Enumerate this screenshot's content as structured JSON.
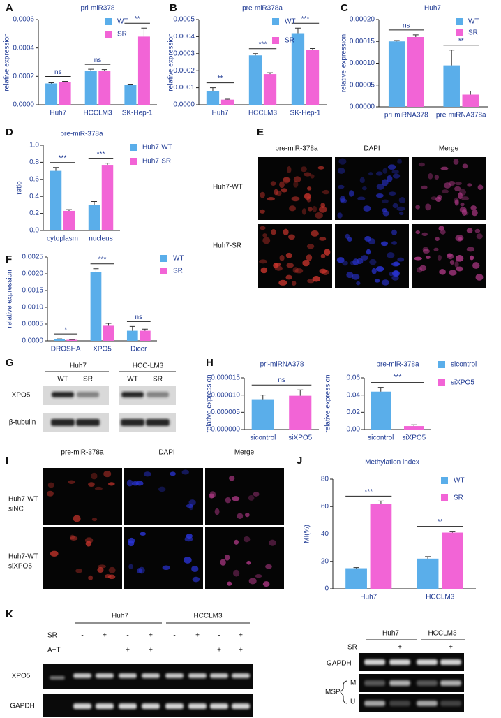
{
  "chart_data": [
    {
      "type": "bar",
      "title": "pri-miR378",
      "ylabel": "relative expression",
      "categories": [
        "Huh7",
        "HCCLM3",
        "SK-Hep-1"
      ],
      "series": [
        {
          "name": "WT",
          "color": "#5aaeea",
          "values": [
            0.00015,
            0.00024,
            0.00014
          ],
          "errors": [
            5e-06,
            1e-05,
            5e-06
          ]
        },
        {
          "name": "SR",
          "color": "#f264d6",
          "values": [
            0.00016,
            0.00024,
            0.00048
          ],
          "errors": [
            5e-06,
            8e-06,
            6e-05
          ]
        }
      ],
      "significance": [
        "ns",
        "ns",
        "**"
      ],
      "ylim": [
        0,
        0.0006
      ],
      "yticks": [
        {
          "value": 0,
          "label": "0.0000"
        },
        0.0002,
        0.0004,
        0.0006
      ]
    },
    {
      "type": "bar",
      "title": "pre-miR378a",
      "ylabel": "relative expression",
      "categories": [
        "Huh7",
        "HCCLM3",
        "SK-Hep-1"
      ],
      "series": [
        {
          "name": "WT",
          "color": "#5aaeea",
          "values": [
            8e-05,
            0.00029,
            0.00042
          ],
          "errors": [
            2e-05,
            1e-05,
            3e-05
          ]
        },
        {
          "name": "SR",
          "color": "#f264d6",
          "values": [
            3e-05,
            0.00018,
            0.00032
          ],
          "errors": [
            3e-06,
            8e-06,
            1e-05
          ]
        }
      ],
      "significance": [
        "**",
        "***",
        "***"
      ],
      "ylim": [
        0,
        0.0005
      ],
      "yticks": [
        {
          "value": 0,
          "label": "0.0000"
        },
        0.0001,
        0.0002,
        0.0003,
        0.0004,
        0.0005
      ]
    },
    {
      "type": "bar",
      "title": "Huh7",
      "ylabel": "relative expression",
      "categories": [
        "pri-miRNA378",
        "pre-miRNA378a"
      ],
      "series": [
        {
          "name": "WT",
          "color": "#5aaeea",
          "values": [
            0.00015,
            9.5e-05
          ],
          "errors": [
            2e-06,
            3.5e-05
          ]
        },
        {
          "name": "SR",
          "color": "#f264d6",
          "values": [
            0.00016,
            2.8e-05
          ],
          "errors": [
            5e-06,
            8e-06
          ]
        }
      ],
      "significance": [
        "ns",
        "**"
      ],
      "ylim": [
        0,
        0.0002
      ],
      "yticks": [
        {
          "value": 0,
          "label": "0.00000"
        },
        5e-05,
        {
          "value": 0.0001,
          "label": "0.00010"
        },
        0.00015,
        {
          "value": 0.0002,
          "label": "0.00020"
        }
      ]
    },
    {
      "type": "bar",
      "title": "pre-miR-378a",
      "ylabel": "ratio",
      "categories": [
        "cytoplasm",
        "nucleus"
      ],
      "series": [
        {
          "name": "Huh7-WT",
          "color": "#5aaeea",
          "values": [
            0.7,
            0.3
          ],
          "errors": [
            0.04,
            0.04
          ]
        },
        {
          "name": "Huh7-SR",
          "color": "#f264d6",
          "values": [
            0.23,
            0.77
          ],
          "errors": [
            0.015,
            0.02
          ]
        }
      ],
      "significance": [
        "***",
        "***"
      ],
      "ylim": [
        0,
        1.0
      ],
      "yticks": [
        {
          "value": 0,
          "label": "0.0"
        },
        0.2,
        0.4,
        0.6,
        0.8,
        {
          "value": 1.0,
          "label": "1.0"
        }
      ]
    },
    {
      "type": "bar",
      "ylabel": "relative expression",
      "categories": [
        "DROSHA",
        "XPO5",
        "Dicer"
      ],
      "series": [
        {
          "name": "WT",
          "color": "#5aaeea",
          "values": [
            5e-05,
            0.00205,
            0.0003
          ],
          "errors": [
            1e-05,
            0.0001,
            0.00013
          ]
        },
        {
          "name": "SR",
          "color": "#f264d6",
          "values": [
            3e-05,
            0.00045,
            0.0003
          ],
          "errors": [
            1e-05,
            7e-05,
            5e-05
          ]
        }
      ],
      "significance": [
        "*",
        "***",
        "ns"
      ],
      "ylim": [
        0,
        0.0025
      ],
      "yticks": [
        {
          "value": 0,
          "label": "0.0000"
        },
        0.0005,
        {
          "value": 0.001,
          "label": "0.0010"
        },
        0.0015,
        {
          "value": 0.002,
          "label": "0.0020"
        },
        0.0025
      ]
    },
    {
      "type": "bar",
      "title": "pri-miRNA378",
      "ylabel": "relative expression",
      "categories": [
        "sicontrol",
        "siXPO5"
      ],
      "values": [
        8.8e-06,
        9.8e-06
      ],
      "errors": [
        1.2e-06,
        1.7e-06
      ],
      "colors": [
        "#5aaeea",
        "#f264d6"
      ],
      "significance": "ns",
      "ylim": [
        0,
        1.5e-05
      ],
      "yticks": [
        {
          "value": 0,
          "label": "0.000000"
        },
        5e-06,
        {
          "value": 1e-05,
          "label": "0.000010"
        },
        1.5e-05
      ]
    },
    {
      "type": "bar",
      "title": "pre-miR-378a",
      "ylabel": "relative expression",
      "categories": [
        "sicontrol",
        "siXPO5"
      ],
      "values": [
        0.044,
        0.004
      ],
      "errors": [
        0.005,
        0.0015
      ],
      "colors": [
        "#5aaeea",
        "#f264d6"
      ],
      "significance": "***",
      "legend": [
        {
          "name": "sicontrol",
          "color": "#5aaeea"
        },
        {
          "name": "siXPO5",
          "color": "#f264d6"
        }
      ],
      "ylim": [
        0,
        0.06
      ],
      "yticks": [
        {
          "value": 0,
          "label": "0.00"
        },
        0.02,
        0.04,
        0.06
      ]
    },
    {
      "type": "bar",
      "title": "Methylation index",
      "ylabel": "MI(%)",
      "categories": [
        "Huh7",
        "HCCLM3"
      ],
      "series": [
        {
          "name": "WT",
          "color": "#5aaeea",
          "values": [
            15,
            22
          ],
          "errors": [
            0.5,
            1.5
          ]
        },
        {
          "name": "SR",
          "color": "#f264d6",
          "values": [
            62,
            41
          ],
          "errors": [
            2,
            1
          ]
        }
      ],
      "significance": [
        "***",
        "**"
      ],
      "ylim": [
        0,
        80
      ],
      "yticks": [
        0,
        20,
        40,
        60,
        80
      ]
    }
  ],
  "panel_labels": [
    "A",
    "B",
    "C",
    "D",
    "E",
    "F",
    "G",
    "H",
    "I",
    "J",
    "K"
  ],
  "E": {
    "columns": [
      "pre-miR-378a",
      "DAPI",
      "Merge"
    ],
    "rows": [
      "Huh7-WT",
      "Huh7-SR"
    ]
  },
  "G": {
    "groups": [
      "Huh7",
      "HCC-LM3"
    ],
    "lanes": [
      "WT",
      "SR",
      "WT",
      "SR"
    ],
    "rows": [
      "XPO5",
      "β-tubulin"
    ]
  },
  "I": {
    "columns": [
      "pre-miR-378a",
      "DAPI",
      "Merge"
    ],
    "rows": [
      [
        "Huh7-WT",
        "siNC"
      ],
      [
        "Huh7-WT",
        "siXPO5"
      ]
    ]
  },
  "K_left": {
    "groups": [
      "Huh7",
      "HCCLM3"
    ],
    "row_labels": [
      "SR",
      "A+T"
    ],
    "SR": [
      "-",
      "+",
      "-",
      "+",
      "-",
      "+",
      "-",
      "+"
    ],
    "A+T": [
      "-",
      "-",
      "+",
      "+",
      "-",
      "-",
      "+",
      "+"
    ],
    "bands": [
      "XPO5",
      "GAPDH"
    ]
  },
  "K_right": {
    "groups": [
      "Huh7",
      "HCCLM3"
    ],
    "row_label": "SR",
    "SR": [
      "-",
      "+",
      "-",
      "+"
    ],
    "bands": [
      "GAPDH",
      "M",
      "U"
    ],
    "bracket": "MSP"
  }
}
